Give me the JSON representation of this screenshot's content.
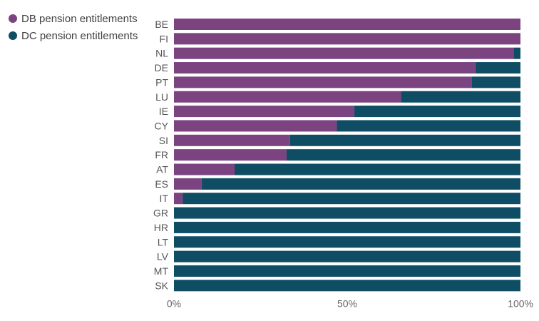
{
  "chart_data": {
    "type": "bar",
    "orientation": "horizontal",
    "stacked": "percent",
    "categories": [
      "BE",
      "FI",
      "NL",
      "DE",
      "PT",
      "LU",
      "IE",
      "CY",
      "SI",
      "FR",
      "AT",
      "ES",
      "IT",
      "GR",
      "HR",
      "LT",
      "LV",
      "MT",
      "SK"
    ],
    "series": [
      {
        "name": "DB pension entitlements",
        "color": "#7B4380",
        "values": [
          100,
          100,
          98,
          87,
          86,
          65.5,
          52,
          47,
          33.5,
          32.5,
          17.5,
          8,
          2.5,
          0,
          0,
          0,
          0,
          0,
          0
        ]
      },
      {
        "name": "DC pension entitlements",
        "color": "#0E4D64",
        "values": [
          0,
          0,
          2,
          13,
          14,
          34.5,
          48,
          53,
          66.5,
          67.5,
          82.5,
          92,
          97.5,
          100,
          100,
          100,
          100,
          100,
          100
        ]
      }
    ],
    "x_ticks": [
      "0%",
      "50%",
      "100%"
    ],
    "xlim": [
      0,
      100
    ],
    "legend_position": "top-left",
    "grid": false
  }
}
